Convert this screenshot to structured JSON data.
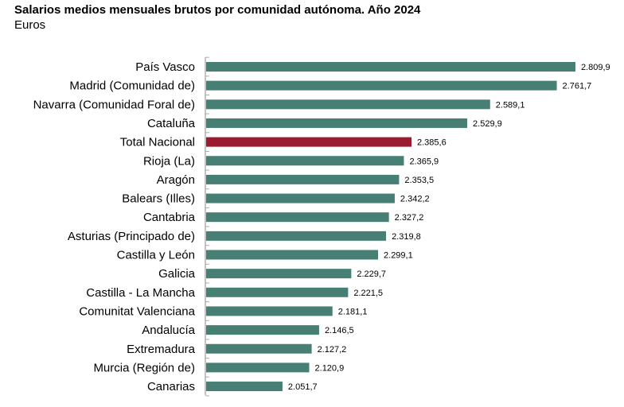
{
  "chart_data": {
    "type": "bar",
    "orientation": "horizontal",
    "title": "Salarios medios mensuales brutos por comunidad autónoma. Año 2024",
    "subtitle": "Euros",
    "categories": [
      "País Vasco",
      "Madrid (Comunidad de)",
      "Navarra (Comunidad Foral de)",
      "Cataluña",
      "Total Nacional",
      "Rioja (La)",
      "Aragón",
      "Balears (Illes)",
      "Cantabria",
      "Asturias (Principado de)",
      "Castilla y León",
      "Galicia",
      "Castilla - La Mancha",
      "Comunitat Valenciana",
      "Andalucía",
      "Extremadura",
      "Murcia (Región de)",
      "Canarias"
    ],
    "values": [
      2809.9,
      2761.7,
      2589.1,
      2529.9,
      2385.6,
      2365.9,
      2353.5,
      2342.2,
      2327.2,
      2319.8,
      2299.1,
      2229.7,
      2221.5,
      2181.1,
      2146.5,
      2127.2,
      2120.9,
      2051.7
    ],
    "value_labels": [
      "2.809,9",
      "2.761,7",
      "2.589,1",
      "2.529,9",
      "2.385,6",
      "2.365,9",
      "2.353,5",
      "2.342,2",
      "2.327,2",
      "2.319,8",
      "2.299,1",
      "2.229,7",
      "2.221,5",
      "2.181,1",
      "2.146,5",
      "2.127,2",
      "2.120,9",
      "2.051,7"
    ],
    "xlim": [
      1852,
      2810
    ],
    "grid": false,
    "colors": {
      "default": "#477f74",
      "highlight": "#9b1a30",
      "highlight_category": "Total Nacional"
    }
  }
}
